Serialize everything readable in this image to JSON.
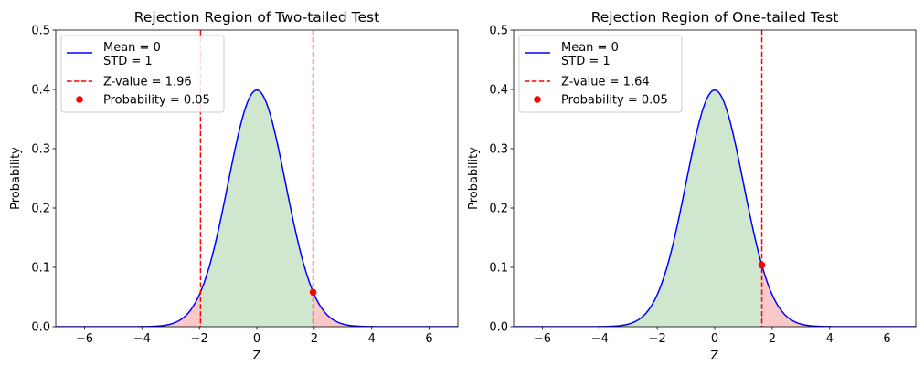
{
  "chart_data": [
    {
      "type": "line",
      "title": "Rejection Region of Two-tailed Test",
      "xlabel": "Z",
      "ylabel": "Probability",
      "xlim": [
        -7,
        7
      ],
      "ylim": [
        0,
        0.5
      ],
      "xticks": [
        -6,
        -4,
        -2,
        0,
        2,
        4,
        6
      ],
      "xtick_labels": [
        "−6",
        "−4",
        "−2",
        "0",
        "2",
        "4",
        "6"
      ],
      "yticks": [
        0.0,
        0.1,
        0.2,
        0.3,
        0.4,
        0.5
      ],
      "ytick_labels": [
        "0.0",
        "0.1",
        "0.2",
        "0.3",
        "0.4",
        "0.5"
      ],
      "grid": false,
      "legend_position": "top-left",
      "distribution": {
        "mean": 0,
        "std": 1
      },
      "curve_label": [
        "Mean = 0",
        "STD = 1"
      ],
      "critical_values": [
        -1.96,
        1.96
      ],
      "zline_label": "Z-value = 1.96",
      "marker": {
        "x": 1.96,
        "y": 0.058
      },
      "marker_label": "Probability = 0.05",
      "colors": {
        "curve": "#0000ff",
        "zline": "#ff0000",
        "marker": "#ff0000",
        "accept_fill": "#cfe6cf",
        "reject_fill": "#f9c8c8"
      }
    },
    {
      "type": "line",
      "title": "Rejection Region of One-tailed Test",
      "xlabel": "Z",
      "ylabel": "Probability",
      "xlim": [
        -7,
        7
      ],
      "ylim": [
        0,
        0.5
      ],
      "xticks": [
        -6,
        -4,
        -2,
        0,
        2,
        4,
        6
      ],
      "xtick_labels": [
        "−6",
        "−4",
        "−2",
        "0",
        "2",
        "4",
        "6"
      ],
      "yticks": [
        0.0,
        0.1,
        0.2,
        0.3,
        0.4,
        0.5
      ],
      "ytick_labels": [
        "0.0",
        "0.1",
        "0.2",
        "0.3",
        "0.4",
        "0.5"
      ],
      "grid": false,
      "legend_position": "top-left",
      "distribution": {
        "mean": 0,
        "std": 1
      },
      "curve_label": [
        "Mean = 0",
        "STD = 1"
      ],
      "critical_values": [
        1.64
      ],
      "zline_label": "Z-value = 1.64",
      "marker": {
        "x": 1.64,
        "y": 0.104
      },
      "marker_label": "Probability = 0.05",
      "colors": {
        "curve": "#0000ff",
        "zline": "#ff0000",
        "marker": "#ff0000",
        "accept_fill": "#cfe6cf",
        "reject_fill": "#f9c8c8"
      }
    }
  ]
}
